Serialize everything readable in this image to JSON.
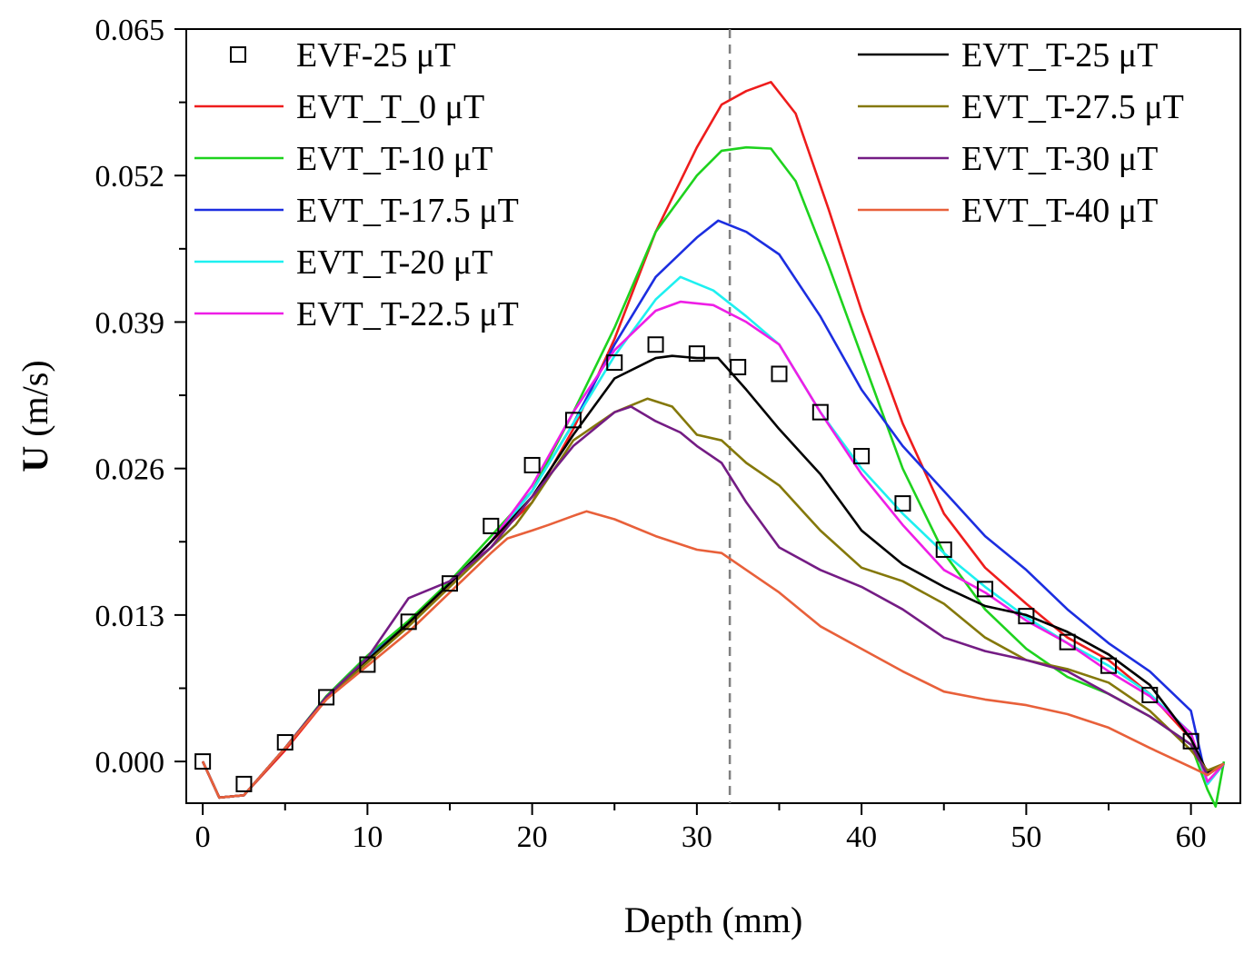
{
  "chart_data": {
    "type": "line",
    "title": "",
    "xlabel": "Depth (mm)",
    "ylabel_bold": "U",
    "ylabel_rest": " (m/s)",
    "xlim": [
      -1,
      63
    ],
    "ylim": [
      -0.0037,
      0.065
    ],
    "xticks": [
      0,
      10,
      20,
      30,
      40,
      50,
      60
    ],
    "xtick_labels": [
      "0",
      "10",
      "20",
      "30",
      "40",
      "50",
      "60"
    ],
    "yticks": [
      0.0,
      0.013,
      0.026,
      0.039,
      0.052,
      0.065
    ],
    "ytick_labels": [
      "0.000",
      "0.013",
      "0.026",
      "0.039",
      "0.052",
      "0.065"
    ],
    "grid": false,
    "vertical_reference_line": {
      "x": 32,
      "style": "dashed",
      "color": "#808080"
    },
    "legend_left": [
      "EVF-25 μT",
      "EVT_T_0 μT",
      "EVT_T-10 μT",
      "EVT_T-17.5 μT",
      "EVT_T-20 μT",
      "EVT_T-22.5 μT"
    ],
    "legend_right": [
      "EVT_T-25 μT",
      "EVT_T-27.5 μT",
      "EVT_T-30 μT",
      "EVT_T-40 μT"
    ],
    "markers": {
      "name": "EVF-25 μT",
      "style": "open-square",
      "color": "#000000",
      "x": [
        0,
        2.5,
        5,
        7.5,
        10,
        12.5,
        15,
        17.5,
        20,
        22.5,
        25,
        27.5,
        30,
        32.5,
        35,
        37.5,
        40,
        42.5,
        45,
        47.5,
        50,
        52.5,
        55,
        57.5,
        60
      ],
      "y": [
        0.0,
        -0.002,
        0.0017,
        0.0057,
        0.0086,
        0.0124,
        0.0158,
        0.0209,
        0.0263,
        0.0303,
        0.0354,
        0.037,
        0.0362,
        0.035,
        0.0344,
        0.031,
        0.0271,
        0.0229,
        0.0188,
        0.0153,
        0.0129,
        0.0106,
        0.0085,
        0.0059,
        0.0018
      ]
    },
    "series": [
      {
        "name": "EVT_T_0 μT",
        "color": "#ee1c1c",
        "x": [
          0,
          1,
          2.5,
          5,
          7.5,
          10,
          12.5,
          15,
          17.5,
          20,
          22.5,
          25,
          27.5,
          30,
          31.5,
          33,
          34.5,
          36,
          38,
          40,
          42.5,
          45,
          47.5,
          50,
          52.5,
          55,
          57.5,
          60,
          61,
          62
        ],
        "y": [
          0,
          -0.0032,
          -0.003,
          0.001,
          0.0055,
          0.009,
          0.0122,
          0.0155,
          0.0195,
          0.023,
          0.0295,
          0.0375,
          0.047,
          0.0545,
          0.0583,
          0.0595,
          0.0603,
          0.0575,
          0.049,
          0.04,
          0.03,
          0.022,
          0.0172,
          0.014,
          0.011,
          0.009,
          0.006,
          0.002,
          -0.001,
          -0.0002
        ]
      },
      {
        "name": "EVT_T-10 μT",
        "color": "#1ed21e",
        "x": [
          0,
          1,
          2.5,
          5,
          7.5,
          10,
          12.5,
          15,
          17.5,
          20,
          22.5,
          25,
          27.5,
          30,
          31.5,
          33,
          34.5,
          36,
          38,
          40,
          42.5,
          45,
          47.5,
          50,
          52.5,
          55,
          57.5,
          60,
          61,
          61.5,
          62
        ],
        "y": [
          0,
          -0.0032,
          -0.003,
          0.0012,
          0.0058,
          0.0094,
          0.0125,
          0.016,
          0.02,
          0.024,
          0.031,
          0.0385,
          0.047,
          0.052,
          0.0542,
          0.0545,
          0.0544,
          0.0515,
          0.044,
          0.036,
          0.026,
          0.0185,
          0.0135,
          0.01,
          0.0075,
          0.006,
          0.004,
          0.0015,
          -0.0025,
          -0.004,
          0
        ]
      },
      {
        "name": "EVT_T-17.5 μT",
        "color": "#1c2ee0",
        "x": [
          0,
          1,
          2.5,
          5,
          7.5,
          10,
          12.5,
          15,
          17.5,
          20,
          22.5,
          25,
          27.5,
          30,
          31.3,
          33,
          35,
          37.5,
          40,
          42.5,
          45,
          47.5,
          50,
          52.5,
          55,
          57.5,
          60,
          61,
          62
        ],
        "y": [
          0,
          -0.0032,
          -0.003,
          0.0012,
          0.0057,
          0.0092,
          0.0122,
          0.0155,
          0.0195,
          0.024,
          0.03,
          0.037,
          0.043,
          0.0465,
          0.048,
          0.047,
          0.045,
          0.0395,
          0.033,
          0.028,
          0.024,
          0.02,
          0.017,
          0.0135,
          0.0105,
          0.008,
          0.0045,
          -0.002,
          -0.0002
        ]
      },
      {
        "name": "EVT_T-20 μT",
        "color": "#1ef0f0",
        "x": [
          0,
          1,
          2.5,
          5,
          7.5,
          10,
          12.5,
          15,
          17.5,
          20,
          22.5,
          25,
          27.5,
          29,
          31,
          33,
          35,
          37.5,
          40,
          42.5,
          45,
          47.5,
          50,
          52.5,
          55,
          57.5,
          60,
          61,
          62
        ],
        "y": [
          0,
          -0.0032,
          -0.003,
          0.0012,
          0.0057,
          0.0091,
          0.0122,
          0.0155,
          0.0195,
          0.024,
          0.03,
          0.036,
          0.041,
          0.043,
          0.0418,
          0.0395,
          0.037,
          0.031,
          0.026,
          0.022,
          0.0185,
          0.0155,
          0.0128,
          0.0105,
          0.0085,
          0.006,
          0.0025,
          -0.002,
          -0.0002
        ]
      },
      {
        "name": "EVT_T-22.5 μT",
        "color": "#ee1ee6",
        "x": [
          0,
          1,
          2.5,
          5,
          7.5,
          10,
          12.5,
          15,
          17.5,
          20,
          22.5,
          25,
          27.5,
          29,
          31,
          33,
          35,
          37.5,
          40,
          42.5,
          45,
          47.5,
          50,
          52.5,
          55,
          57.5,
          60,
          61,
          62
        ],
        "y": [
          0,
          -0.0032,
          -0.003,
          0.0012,
          0.0057,
          0.009,
          0.0122,
          0.0155,
          0.0195,
          0.0245,
          0.031,
          0.0365,
          0.04,
          0.0408,
          0.0405,
          0.039,
          0.037,
          0.031,
          0.0255,
          0.021,
          0.017,
          0.015,
          0.0125,
          0.0105,
          0.008,
          0.0058,
          0.0025,
          -0.0018,
          -0.0002
        ]
      },
      {
        "name": "EVT_T-25 μT",
        "color": "#000000",
        "x": [
          0,
          1,
          2.5,
          5,
          7.5,
          10,
          12.5,
          15,
          17.5,
          20,
          22.5,
          25,
          27.5,
          28.5,
          30,
          31.3,
          33,
          35,
          37.5,
          40,
          42.5,
          45,
          47.5,
          50,
          52.5,
          55,
          57.5,
          60,
          61,
          62
        ],
        "y": [
          0,
          -0.0032,
          -0.003,
          0.0012,
          0.0057,
          0.009,
          0.0123,
          0.0158,
          0.0195,
          0.0235,
          0.029,
          0.034,
          0.0358,
          0.036,
          0.0358,
          0.0358,
          0.033,
          0.0295,
          0.0255,
          0.0205,
          0.0175,
          0.0155,
          0.0138,
          0.013,
          0.0115,
          0.0095,
          0.0068,
          0.002,
          -0.001,
          -0.0002
        ]
      },
      {
        "name": "EVT_T-27.5 μT",
        "color": "#84780a",
        "x": [
          0,
          1,
          2.5,
          5,
          7.5,
          10,
          12.5,
          15,
          17.5,
          19,
          20,
          22.5,
          25,
          27,
          28.5,
          30,
          31.5,
          33,
          35,
          37.5,
          40,
          42.5,
          45,
          47.5,
          50,
          52.5,
          55,
          57.5,
          60,
          61,
          62
        ],
        "y": [
          0,
          -0.0032,
          -0.003,
          0.0012,
          0.0056,
          0.0088,
          0.012,
          0.0155,
          0.019,
          0.021,
          0.023,
          0.0285,
          0.031,
          0.0322,
          0.0315,
          0.029,
          0.0285,
          0.0265,
          0.0245,
          0.0205,
          0.0172,
          0.016,
          0.014,
          0.011,
          0.009,
          0.0082,
          0.007,
          0.0045,
          0.001,
          -0.0008,
          -0.0002
        ]
      },
      {
        "name": "EVT_T-30 μT",
        "color": "#741c84",
        "x": [
          0,
          1,
          2.5,
          5,
          7.5,
          10,
          12.5,
          15,
          17.5,
          20,
          22.5,
          25,
          26,
          27.5,
          29,
          30,
          31.5,
          33,
          35,
          37.5,
          40,
          42.5,
          45,
          47.5,
          50,
          52.5,
          55,
          57.5,
          60,
          61,
          62
        ],
        "y": [
          0,
          -0.0032,
          -0.003,
          0.0012,
          0.0057,
          0.0092,
          0.0145,
          0.016,
          0.019,
          0.0235,
          0.028,
          0.031,
          0.0315,
          0.0302,
          0.0292,
          0.028,
          0.0265,
          0.023,
          0.019,
          0.017,
          0.0155,
          0.0135,
          0.011,
          0.0098,
          0.009,
          0.008,
          0.006,
          0.004,
          0.0015,
          -0.0012,
          -0.0002
        ]
      },
      {
        "name": "EVT_T-40 μT",
        "color": "#e8603a",
        "x": [
          0,
          1,
          2.5,
          5,
          7.5,
          10,
          12.5,
          15,
          17.5,
          18.5,
          20,
          21,
          22.5,
          23.3,
          25,
          27.5,
          30,
          31.5,
          33,
          35,
          37.5,
          40,
          42.5,
          45,
          47.5,
          50,
          52.5,
          55,
          57.5,
          60,
          61,
          62
        ],
        "y": [
          0,
          -0.0032,
          -0.003,
          0.0012,
          0.0055,
          0.0085,
          0.0115,
          0.015,
          0.0185,
          0.0198,
          0.0205,
          0.021,
          0.0218,
          0.0222,
          0.0215,
          0.02,
          0.0188,
          0.0185,
          0.017,
          0.015,
          0.012,
          0.01,
          0.008,
          0.0062,
          0.0055,
          0.005,
          0.0042,
          0.003,
          0.0012,
          -0.0005,
          -0.0012,
          -0.0002
        ]
      }
    ]
  }
}
